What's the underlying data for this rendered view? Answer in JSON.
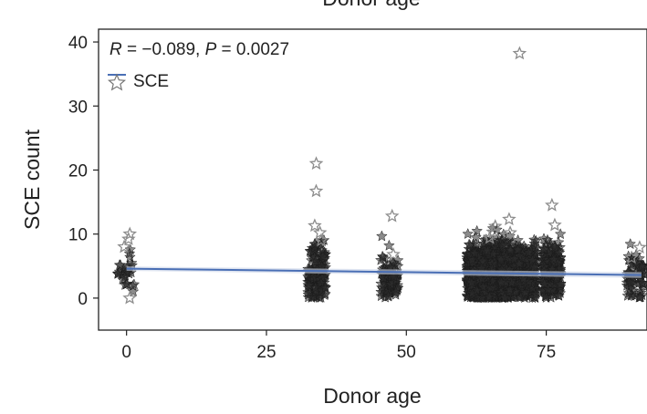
{
  "top_title_fragment": "Donor age",
  "chart_data": {
    "type": "scatter",
    "xlabel": "Donor age",
    "ylabel": "SCE count",
    "xlim": [
      -5,
      93
    ],
    "ylim": [
      -5,
      42
    ],
    "xticks": [
      0,
      25,
      50,
      75
    ],
    "yticks": [
      0,
      10,
      20,
      30,
      40
    ],
    "grid": false,
    "legend": {
      "placement": "top-left",
      "entries": [
        {
          "name": "SCE"
        }
      ]
    },
    "annotation": {
      "r_label": "R",
      "r_value": " = −0.089, ",
      "p_label": "P",
      "p_value": " = 0.0027"
    },
    "marker": "star",
    "colors": {
      "points": "#2b2b2b",
      "outliers": "#8c8c8c",
      "trend": "#4a6fb5",
      "band": "#c9d3e8"
    },
    "trend": {
      "x": [
        0,
        92
      ],
      "y": [
        4.6,
        3.6
      ]
    },
    "groups": [
      {
        "age": 0,
        "n": 30,
        "center": 4.5,
        "spread": 2.2,
        "outliers": [
          10.0,
          9.2,
          8.0,
          0.0
        ]
      },
      {
        "age": 34,
        "n": 140,
        "center": 3.8,
        "spread": 2.4,
        "outliers": [
          21.0,
          16.7,
          11.3,
          10.2,
          9.0
        ]
      },
      {
        "age": 47,
        "n": 90,
        "center": 2.8,
        "spread": 1.8,
        "outliers": [
          12.8,
          6.8
        ]
      },
      {
        "age": 64,
        "n": 900,
        "center": 3.6,
        "spread": 2.3,
        "outliers": [
          11.2,
          10.3,
          9.4
        ]
      },
      {
        "age": 70,
        "n": 560,
        "center": 3.7,
        "spread": 2.3,
        "outliers": [
          38.2,
          12.3,
          10.2
        ]
      },
      {
        "age": 76,
        "n": 240,
        "center": 4.0,
        "spread": 2.4,
        "outliers": [
          14.5,
          11.4
        ]
      },
      {
        "age": 91,
        "n": 70,
        "center": 3.0,
        "spread": 1.9,
        "outliers": [
          7.9,
          6.3
        ]
      }
    ]
  }
}
